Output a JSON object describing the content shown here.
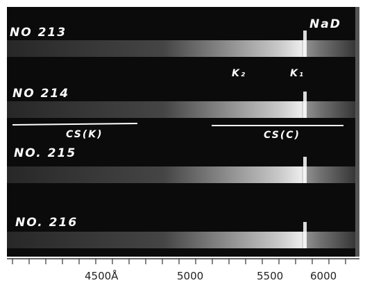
{
  "plate": {
    "top_label": "NaD",
    "lines": {
      "k2": "K₂",
      "k1": "K₁"
    },
    "spectra": [
      {
        "label": "NO 213"
      },
      {
        "label": "NO 214"
      },
      {
        "label": "NO. 215"
      },
      {
        "label": "NO. 216"
      }
    ],
    "regions": [
      {
        "label": "CS(K)"
      },
      {
        "label": "CS(C)"
      }
    ],
    "scale": {
      "labels": [
        "4500Å",
        "5000",
        "5500",
        "6000"
      ]
    }
  }
}
